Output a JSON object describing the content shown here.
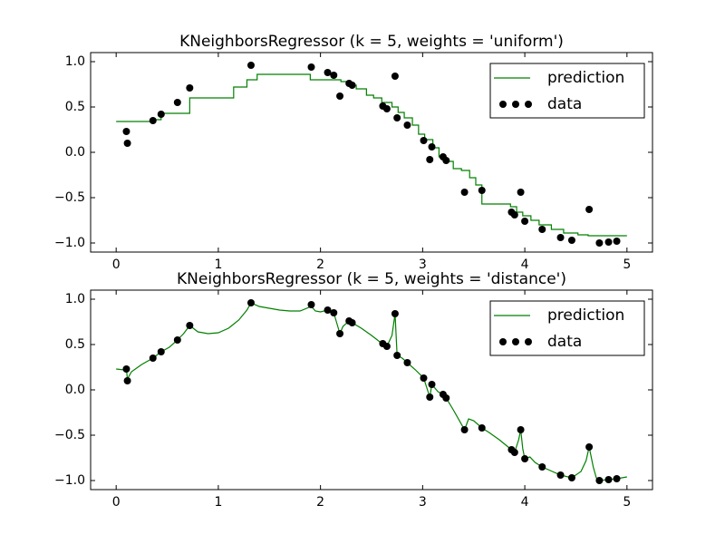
{
  "chart_data": [
    {
      "type": "combo",
      "title": "KNeighborsRegressor (k = 5, weights = 'uniform')",
      "xlim": [
        -0.25,
        5.25
      ],
      "ylim": [
        -1.1,
        1.1
      ],
      "xticks": [
        0,
        1,
        2,
        3,
        4,
        5
      ],
      "yticks": [
        {
          "value": -1.0,
          "label": "−1.0"
        },
        {
          "value": -0.5,
          "label": "−0.5"
        },
        {
          "value": 0.0,
          "label": "0.0"
        },
        {
          "value": 0.5,
          "label": "0.5"
        },
        {
          "value": 1.0,
          "label": "1.0"
        }
      ],
      "legend": "upper right",
      "series": [
        {
          "name": "prediction",
          "type": "line",
          "color": "#008000",
          "x": [
            0,
            0.38,
            0.38,
            0.44,
            0.44,
            0.72,
            0.72,
            1.15,
            1.15,
            1.28,
            1.28,
            1.38,
            1.38,
            1.9,
            1.9,
            2.2,
            2.2,
            2.28,
            2.28,
            2.35,
            2.35,
            2.45,
            2.45,
            2.52,
            2.52,
            2.6,
            2.6,
            2.7,
            2.7,
            2.76,
            2.76,
            2.82,
            2.82,
            2.9,
            2.9,
            2.96,
            2.96,
            3.02,
            3.02,
            3.1,
            3.1,
            3.16,
            3.16,
            3.22,
            3.22,
            3.3,
            3.3,
            3.38,
            3.38,
            3.46,
            3.46,
            3.52,
            3.52,
            3.58,
            3.58,
            3.86,
            3.86,
            3.92,
            3.92,
            3.98,
            3.98,
            4.06,
            4.06,
            4.14,
            4.14,
            4.26,
            4.26,
            4.38,
            4.38,
            4.52,
            4.52,
            4.62,
            4.62,
            5.0
          ],
          "values": [
            0.34,
            0.34,
            0.36,
            0.36,
            0.43,
            0.43,
            0.6,
            0.6,
            0.72,
            0.72,
            0.8,
            0.8,
            0.86,
            0.86,
            0.8,
            0.8,
            0.78,
            0.78,
            0.74,
            0.74,
            0.7,
            0.7,
            0.63,
            0.63,
            0.6,
            0.6,
            0.55,
            0.55,
            0.5,
            0.5,
            0.44,
            0.44,
            0.38,
            0.38,
            0.3,
            0.3,
            0.2,
            0.2,
            0.14,
            0.14,
            0.05,
            0.05,
            -0.05,
            -0.05,
            -0.1,
            -0.1,
            -0.18,
            -0.18,
            -0.2,
            -0.2,
            -0.28,
            -0.28,
            -0.36,
            -0.36,
            -0.57,
            -0.57,
            -0.6,
            -0.6,
            -0.66,
            -0.66,
            -0.7,
            -0.7,
            -0.75,
            -0.75,
            -0.8,
            -0.8,
            -0.85,
            -0.85,
            -0.89,
            -0.89,
            -0.91,
            -0.91,
            -0.92,
            -0.92
          ]
        },
        {
          "name": "data",
          "type": "scatter",
          "color": "#000000",
          "x": [
            0.1,
            0.11,
            0.36,
            0.44,
            0.6,
            0.72,
            1.32,
            1.91,
            2.07,
            2.13,
            2.19,
            2.28,
            2.31,
            2.61,
            2.65,
            2.73,
            2.75,
            2.85,
            3.01,
            3.07,
            3.09,
            3.2,
            3.23,
            3.41,
            3.58,
            3.87,
            3.9,
            3.96,
            4.0,
            4.17,
            4.35,
            4.46,
            4.63,
            4.73,
            4.82,
            4.9
          ],
          "values": [
            0.23,
            0.1,
            0.35,
            0.42,
            0.55,
            0.71,
            0.96,
            0.94,
            0.88,
            0.85,
            0.62,
            0.76,
            0.74,
            0.51,
            0.48,
            0.84,
            0.38,
            0.3,
            0.13,
            -0.08,
            0.06,
            -0.05,
            -0.09,
            -0.44,
            -0.42,
            -0.66,
            -0.69,
            -0.44,
            -0.76,
            -0.85,
            -0.94,
            -0.97,
            -0.63,
            -1.0,
            -0.99,
            -0.98
          ]
        }
      ]
    },
    {
      "type": "combo",
      "title": "KNeighborsRegressor (k = 5, weights = 'distance')",
      "xlim": [
        -0.25,
        5.25
      ],
      "ylim": [
        -1.1,
        1.1
      ],
      "xticks": [
        0,
        1,
        2,
        3,
        4,
        5
      ],
      "yticks": [
        {
          "value": -1.0,
          "label": "−1.0"
        },
        {
          "value": -0.5,
          "label": "−0.5"
        },
        {
          "value": 0.0,
          "label": "0.0"
        },
        {
          "value": 0.5,
          "label": "0.5"
        },
        {
          "value": 1.0,
          "label": "1.0"
        }
      ],
      "legend": "upper right",
      "series": [
        {
          "name": "prediction",
          "type": "line",
          "color": "#008000",
          "x": [
            0,
            0.08,
            0.1,
            0.11,
            0.15,
            0.25,
            0.36,
            0.44,
            0.52,
            0.6,
            0.66,
            0.72,
            0.8,
            0.9,
            1.0,
            1.1,
            1.2,
            1.28,
            1.32,
            1.4,
            1.5,
            1.6,
            1.7,
            1.8,
            1.91,
            1.95,
            2.0,
            2.07,
            2.13,
            2.19,
            2.22,
            2.28,
            2.31,
            2.4,
            2.5,
            2.58,
            2.61,
            2.65,
            2.7,
            2.73,
            2.75,
            2.8,
            2.85,
            2.93,
            3.01,
            3.07,
            3.09,
            3.15,
            3.2,
            3.23,
            3.3,
            3.41,
            3.45,
            3.5,
            3.58,
            3.65,
            3.75,
            3.87,
            3.9,
            3.94,
            3.96,
            3.98,
            4.0,
            4.05,
            4.1,
            4.17,
            4.25,
            4.35,
            4.46,
            4.55,
            4.6,
            4.63,
            4.67,
            4.7,
            4.73,
            4.82,
            4.9,
            5.0
          ],
          "values": [
            0.23,
            0.22,
            0.23,
            0.12,
            0.2,
            0.28,
            0.35,
            0.42,
            0.47,
            0.55,
            0.62,
            0.71,
            0.64,
            0.62,
            0.63,
            0.68,
            0.77,
            0.88,
            0.96,
            0.92,
            0.9,
            0.88,
            0.87,
            0.87,
            0.92,
            0.87,
            0.86,
            0.88,
            0.85,
            0.62,
            0.7,
            0.76,
            0.74,
            0.68,
            0.6,
            0.53,
            0.51,
            0.48,
            0.6,
            0.84,
            0.38,
            0.35,
            0.3,
            0.22,
            0.13,
            -0.08,
            0.06,
            -0.02,
            -0.05,
            -0.09,
            -0.22,
            -0.44,
            -0.32,
            -0.34,
            -0.42,
            -0.47,
            -0.55,
            -0.66,
            -0.69,
            -0.55,
            -0.44,
            -0.65,
            -0.76,
            -0.74,
            -0.8,
            -0.85,
            -0.89,
            -0.94,
            -0.97,
            -0.9,
            -0.78,
            -0.63,
            -0.85,
            -0.97,
            -1.0,
            -0.99,
            -0.98,
            -0.96
          ]
        },
        {
          "name": "data",
          "type": "scatter",
          "color": "#000000",
          "x": [
            0.1,
            0.11,
            0.36,
            0.44,
            0.6,
            0.72,
            1.32,
            1.91,
            2.07,
            2.13,
            2.19,
            2.28,
            2.31,
            2.61,
            2.65,
            2.73,
            2.75,
            2.85,
            3.01,
            3.07,
            3.09,
            3.2,
            3.23,
            3.41,
            3.58,
            3.87,
            3.9,
            3.96,
            4.0,
            4.17,
            4.35,
            4.46,
            4.63,
            4.73,
            4.82,
            4.9
          ],
          "values": [
            0.23,
            0.1,
            0.35,
            0.42,
            0.55,
            0.71,
            0.96,
            0.94,
            0.88,
            0.85,
            0.62,
            0.76,
            0.74,
            0.51,
            0.48,
            0.84,
            0.38,
            0.3,
            0.13,
            -0.08,
            0.06,
            -0.05,
            -0.09,
            -0.44,
            -0.42,
            -0.66,
            -0.69,
            -0.44,
            -0.76,
            -0.85,
            -0.94,
            -0.97,
            -0.63,
            -1.0,
            -0.99,
            -0.98
          ]
        }
      ]
    }
  ]
}
